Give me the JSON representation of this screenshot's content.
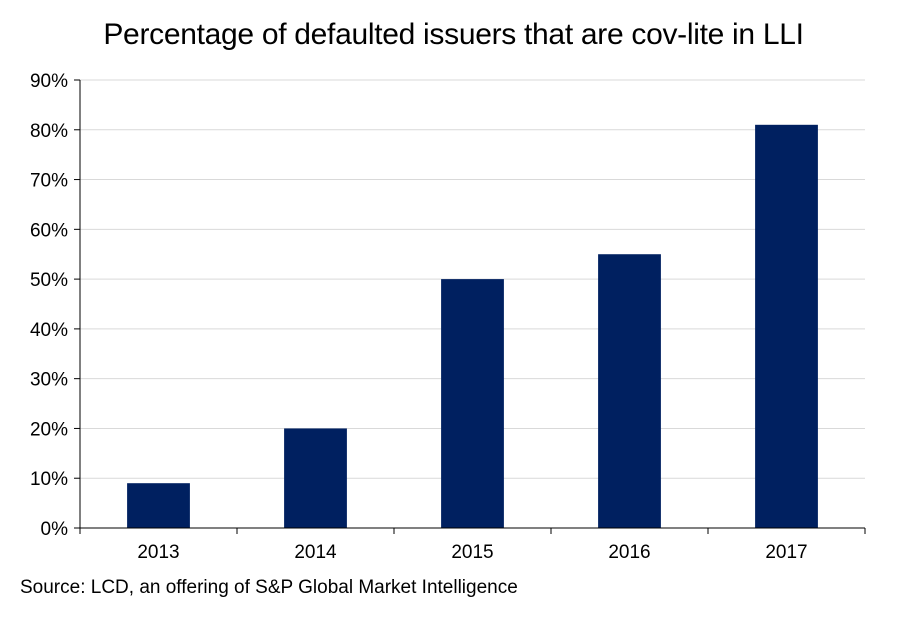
{
  "chart_data": {
    "type": "bar",
    "title": "Percentage of defaulted issuers that are cov-lite in LLI",
    "categories": [
      "2013",
      "2014",
      "2015",
      "2016",
      "2017"
    ],
    "values": [
      9,
      20,
      50,
      55,
      81
    ],
    "y_tick_labels": [
      "0%",
      "10%",
      "20%",
      "30%",
      "40%",
      "50%",
      "60%",
      "70%",
      "80%",
      "90%"
    ],
    "ylim": [
      0,
      90
    ],
    "y_unit": "%",
    "grid": true,
    "bar_color": "#002060",
    "source": "Source: LCD,  an offering of S&P Global Market Intelligence"
  }
}
